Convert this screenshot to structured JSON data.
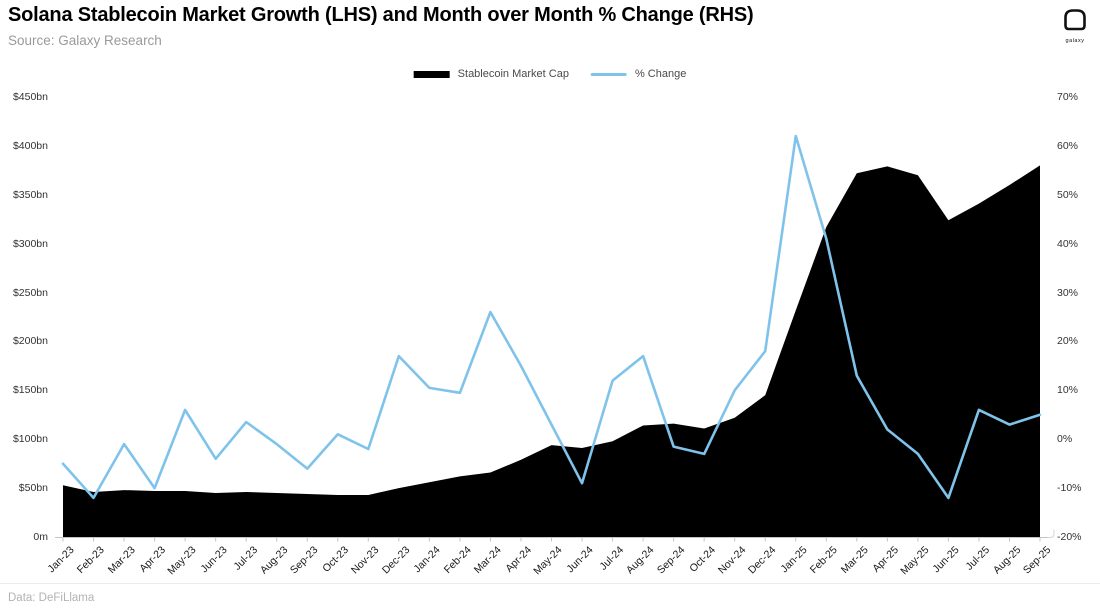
{
  "header": {
    "title": "Solana Stablecoin Market Growth (LHS) and Month over Month % Change (RHS)",
    "source": "Source: Galaxy Research"
  },
  "logo": {
    "label": "galaxy",
    "icon": "galaxy-helmet-icon"
  },
  "legend": [
    {
      "label": "Stablecoin Market Cap",
      "color": "#000000",
      "type": "area"
    },
    {
      "label": "% Change",
      "color": "#7FC3EB",
      "type": "line"
    }
  ],
  "footer": {
    "label": "Data: DeFiLlama"
  },
  "chart_data": {
    "type": "combo",
    "subtypes": [
      "area",
      "line"
    ],
    "grid": false,
    "legend_position": "top-center",
    "categories": [
      "Jan-23",
      "Feb-23",
      "Mar-23",
      "Apr-23",
      "May-23",
      "Jun-23",
      "Jul-23",
      "Aug-23",
      "Sep-23",
      "Oct-23",
      "Nov-23",
      "Dec-23",
      "Jan-24",
      "Feb-24",
      "Mar-24",
      "Apr-24",
      "May-24",
      "Jun-24",
      "Jul-24",
      "Aug-24",
      "Sep-24",
      "Oct-24",
      "Nov-24",
      "Dec-24",
      "Jan-25",
      "Feb-25",
      "Mar-25",
      "Apr-25",
      "May-25",
      "Jun-25",
      "Jul-25",
      "Aug-25",
      "Sep-25"
    ],
    "series": [
      {
        "name": "Stablecoin Market Cap",
        "type": "area",
        "axis": "left",
        "unit": "$bn",
        "color": "#000000",
        "values": [
          53,
          46,
          48,
          47,
          47,
          45,
          46,
          45,
          44,
          43,
          43,
          50,
          56,
          62,
          66,
          79,
          94,
          91,
          98,
          114,
          116,
          111,
          122,
          145,
          232,
          317,
          372,
          379,
          370,
          324,
          341,
          360,
          380
        ]
      },
      {
        "name": "% Change",
        "type": "line",
        "axis": "right",
        "unit": "%",
        "color": "#7FC3EB",
        "values": [
          -5,
          -12,
          -1,
          -10,
          6,
          -4,
          3.5,
          -1,
          -6,
          1,
          -2,
          17,
          10.5,
          9.5,
          26,
          15,
          3,
          -9,
          12,
          17,
          -1.5,
          -3,
          10,
          18,
          62,
          41,
          13,
          2,
          -3,
          -12,
          6,
          3,
          5
        ]
      }
    ],
    "left_axis": {
      "min": 0,
      "max": 450,
      "step": 50,
      "ticks": [
        "$450bn",
        "$400bn",
        "$350bn",
        "$300bn",
        "$250bn",
        "$200bn",
        "$150bn",
        "$100bn",
        "$50bn",
        "0m"
      ]
    },
    "right_axis": {
      "min": -20,
      "max": 70,
      "step": 10,
      "ticks": [
        "70%",
        "60%",
        "50%",
        "40%",
        "30%",
        "20%",
        "10%",
        "0%",
        "-10%",
        "-20%"
      ]
    }
  }
}
